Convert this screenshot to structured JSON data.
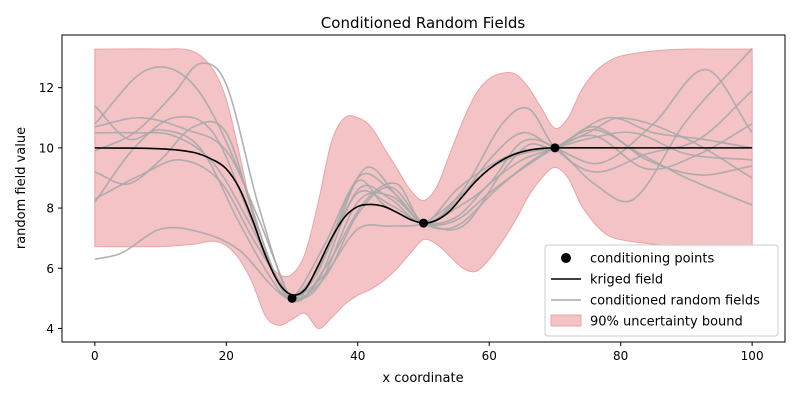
{
  "chart_data": {
    "type": "line",
    "title": "Conditioned Random Fields",
    "xlabel": "x coordinate",
    "ylabel": "random field value",
    "xlim": [
      -5,
      105
    ],
    "ylim": [
      3.55,
      13.75
    ],
    "x_ticks": [
      0,
      20,
      40,
      60,
      80,
      100
    ],
    "y_ticks": [
      4,
      6,
      8,
      10,
      12
    ],
    "grid": false,
    "legend_position": "lower-right",
    "legend": [
      {
        "label": "conditioning points",
        "kind": "marker",
        "color": "#000000"
      },
      {
        "label": "kriged field",
        "kind": "line",
        "color": "#000000"
      },
      {
        "label": "conditioned random fields",
        "kind": "line",
        "color": "#a9a9a9"
      },
      {
        "label": "90% uncertainty bound",
        "kind": "patch",
        "color": "#f4c3c5"
      }
    ],
    "conditioning_points": {
      "x": [
        30,
        50,
        70
      ],
      "y": [
        5.0,
        7.5,
        10.0
      ]
    },
    "kriged_field": {
      "x": [
        0,
        10,
        15,
        18,
        20,
        22,
        24,
        26,
        28,
        30,
        32,
        34,
        36,
        38,
        40,
        42,
        44,
        46,
        48,
        50,
        52,
        54,
        56,
        58,
        60,
        62,
        64,
        66,
        68,
        70,
        80,
        100
      ],
      "y": [
        10.0,
        9.97,
        9.85,
        9.6,
        9.3,
        8.65,
        7.6,
        6.4,
        5.5,
        5.12,
        5.3,
        6.1,
        7.0,
        7.7,
        8.05,
        8.12,
        8.05,
        7.85,
        7.62,
        7.5,
        7.6,
        7.9,
        8.4,
        8.9,
        9.3,
        9.6,
        9.8,
        9.92,
        9.98,
        10.0,
        10.0,
        10.0
      ]
    },
    "uncertainty_bound": {
      "x": [
        0,
        10,
        15,
        18,
        20,
        22,
        24,
        26,
        28,
        30,
        32,
        34,
        36,
        38,
        40,
        42,
        44,
        46,
        48,
        50,
        52,
        54,
        56,
        58,
        60,
        62,
        64,
        66,
        68,
        70,
        72,
        74,
        76,
        78,
        80,
        85,
        90,
        95,
        100
      ],
      "upper": [
        13.28,
        13.28,
        13.2,
        12.6,
        11.6,
        9.8,
        7.8,
        6.4,
        5.8,
        5.8,
        6.5,
        8.2,
        10.2,
        11.0,
        11.0,
        10.7,
        10.0,
        9.3,
        8.6,
        8.25,
        8.7,
        9.8,
        10.9,
        11.8,
        12.3,
        12.48,
        12.45,
        12.0,
        11.3,
        10.65,
        11.0,
        11.9,
        12.5,
        12.85,
        13.05,
        13.22,
        13.28,
        13.28,
        13.28
      ],
      "lower": [
        6.72,
        6.72,
        6.8,
        6.9,
        6.75,
        6.3,
        5.5,
        4.4,
        4.1,
        4.3,
        4.5,
        4.0,
        4.35,
        4.8,
        5.1,
        5.3,
        5.6,
        6.0,
        6.5,
        6.95,
        6.8,
        6.4,
        6.0,
        5.9,
        6.3,
        6.9,
        7.6,
        8.4,
        9.0,
        9.35,
        9.0,
        8.1,
        7.5,
        7.1,
        6.95,
        6.8,
        6.72,
        6.72,
        6.72
      ]
    },
    "random_fields": [
      {
        "x": [
          0,
          8,
          15,
          22,
          27,
          30,
          34,
          40,
          45,
          50,
          55,
          60,
          65,
          70,
          78,
          85,
          92,
          100
        ],
        "y": [
          10.8,
          12.6,
          12.1,
          9.2,
          6.0,
          4.9,
          5.6,
          8.6,
          8.3,
          7.5,
          8.6,
          9.4,
          9.9,
          10.0,
          11.0,
          10.5,
          10.3,
          10.0
        ]
      },
      {
        "x": [
          0,
          6,
          12,
          16,
          20,
          25,
          30,
          35,
          41,
          46,
          50,
          56,
          62,
          66,
          70,
          76,
          84,
          92,
          100
        ],
        "y": [
          9.9,
          10.5,
          11.8,
          12.8,
          12.1,
          8.0,
          5.0,
          6.0,
          8.2,
          8.8,
          7.5,
          8.6,
          10.8,
          11.3,
          10.0,
          9.2,
          9.8,
          10.3,
          11.9
        ]
      },
      {
        "x": [
          0,
          5,
          10,
          16,
          22,
          27,
          30,
          35,
          41,
          46,
          50,
          55,
          60,
          65,
          70,
          76,
          82,
          90,
          100
        ],
        "y": [
          11.4,
          10.3,
          10.6,
          10.0,
          7.5,
          5.6,
          5.0,
          6.4,
          9.3,
          8.4,
          7.5,
          8.0,
          8.8,
          10.2,
          10.0,
          8.8,
          8.3,
          10.9,
          13.3
        ]
      },
      {
        "x": [
          0,
          5,
          10,
          15,
          20,
          25,
          30,
          35,
          40,
          45,
          50,
          55,
          60,
          65,
          70,
          75,
          80,
          90,
          100
        ],
        "y": [
          9.2,
          8.8,
          9.6,
          10.7,
          10.5,
          7.2,
          4.9,
          6.5,
          8.5,
          8.1,
          7.5,
          7.7,
          8.8,
          9.6,
          10.0,
          10.5,
          11.0,
          10.3,
          9.0
        ]
      },
      {
        "x": [
          0,
          6,
          12,
          18,
          24,
          28,
          30,
          34,
          40,
          45,
          50,
          55,
          60,
          65,
          70,
          77,
          85,
          93,
          100
        ],
        "y": [
          8.2,
          10.0,
          11.0,
          10.5,
          7.5,
          5.5,
          5.0,
          5.9,
          9.0,
          8.6,
          7.5,
          8.2,
          9.6,
          10.5,
          10.0,
          9.5,
          10.8,
          12.6,
          10.5
        ]
      },
      {
        "x": [
          0,
          4,
          10,
          16,
          22,
          27,
          30,
          35,
          40,
          45,
          50,
          55,
          60,
          65,
          70,
          75,
          82,
          90,
          100
        ],
        "y": [
          6.3,
          6.5,
          7.3,
          7.2,
          6.6,
          5.4,
          5.0,
          5.8,
          7.3,
          7.4,
          7.5,
          8.3,
          9.3,
          9.8,
          10.0,
          10.3,
          10.5,
          9.8,
          9.6
        ]
      },
      {
        "x": [
          0,
          6,
          12,
          18,
          24,
          28,
          30,
          35,
          40,
          44,
          50,
          56,
          62,
          66,
          70,
          76,
          84,
          92,
          100
        ],
        "y": [
          10.5,
          10.5,
          10.4,
          9.5,
          7.3,
          5.5,
          5.0,
          6.8,
          8.9,
          8.1,
          7.5,
          7.4,
          9.2,
          10.1,
          10.0,
          10.7,
          9.6,
          9.1,
          9.4
        ]
      },
      {
        "x": [
          0,
          7,
          13,
          19,
          24,
          28,
          30,
          34,
          40,
          45,
          50,
          55,
          60,
          65,
          70,
          76,
          83,
          90,
          100
        ],
        "y": [
          8.3,
          9.1,
          9.6,
          8.9,
          7.0,
          5.6,
          5.0,
          5.4,
          8.2,
          8.4,
          7.5,
          7.6,
          8.5,
          9.3,
          10.0,
          10.6,
          9.8,
          9.0,
          8.1
        ]
      },
      {
        "x": [
          0,
          7,
          14,
          20,
          25,
          28,
          30,
          35,
          40,
          45,
          50,
          55,
          61,
          66,
          70,
          76,
          84,
          92,
          100
        ],
        "y": [
          10.7,
          11.0,
          10.6,
          9.9,
          7.6,
          5.9,
          5.0,
          5.7,
          7.8,
          8.7,
          7.5,
          7.4,
          8.6,
          9.5,
          10.0,
          10.4,
          9.3,
          9.8,
          10.8
        ]
      }
    ]
  }
}
